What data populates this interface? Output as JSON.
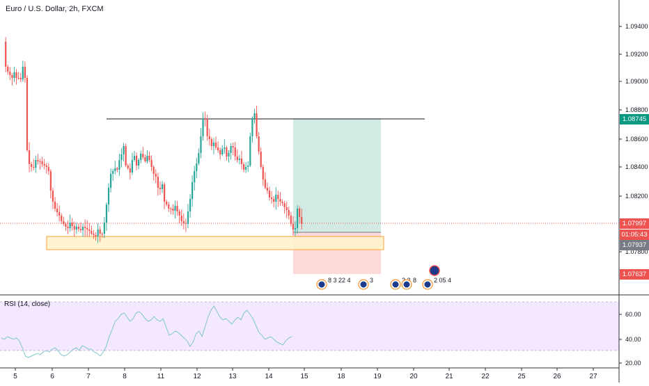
{
  "header": {
    "symbol_title": "Euro / U.S. Dollar, 2h, FXCM"
  },
  "price_axis": {
    "ticks": [
      "1.09400",
      "1.09200",
      "1.09000",
      "1.08800",
      "1.08600",
      "1.08400",
      "1.08200",
      "1.07800"
    ]
  },
  "price_labels": {
    "tp": "1.08745",
    "last": "1.07997",
    "countdown": "01:05:43",
    "entry": "1.07937",
    "sl": "1.07637"
  },
  "rsi": {
    "title": "RSI (14, close)",
    "ticks": [
      "60.00",
      "40.00",
      "20.00"
    ]
  },
  "time_axis": {
    "ticks": [
      "5",
      "6",
      "7",
      "8",
      "11",
      "12",
      "13",
      "14",
      "15",
      "18",
      "19",
      "20",
      "21",
      "22",
      "25",
      "26",
      "27"
    ]
  },
  "events": [
    {
      "icon": "us-eu-flags-icon",
      "text": "8 3 22 4"
    },
    {
      "icon": "us-flag-icon",
      "text": "3"
    },
    {
      "icon": "us-eu-flags-icon",
      "text": "2 3"
    },
    {
      "icon": "us-flag-icon",
      "text": "8"
    },
    {
      "icon": "us-eu-flags-icon",
      "text": "2 05 4"
    }
  ],
  "colors": {
    "up": "#26a69a",
    "down": "#ef5350",
    "tp_zone": "#cfe9e3",
    "sl_zone": "#fbd8d8",
    "zone_fill": "#fff2cc",
    "zone_border": "#f59a23",
    "rsi_band": "#f3e8fd",
    "rsi_line": "#7fc6cf"
  }
}
